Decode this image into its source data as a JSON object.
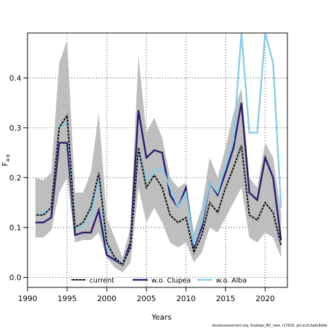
{
  "chart_data": {
    "type": "line",
    "xlabel": "Years",
    "ylabel": "F",
    "ylabel_sub": "4-6",
    "xlim": [
      1990,
      2022.8
    ],
    "ylim": [
      -0.02,
      0.49
    ],
    "xticks": [
      1990,
      1995,
      2000,
      2005,
      2010,
      2015,
      2020
    ],
    "yticks": [
      0.0,
      0.1,
      0.2,
      0.3,
      0.4
    ],
    "ytick_labels": [
      "0.0",
      "0.1",
      "0.2",
      "0.3",
      "0.4"
    ],
    "grid": true,
    "legend_position": "bottom",
    "x": [
      1991,
      1992,
      1993,
      1994,
      1995,
      1996,
      1997,
      1998,
      1999,
      2000,
      2001,
      2002,
      2003,
      2004,
      2005,
      2006,
      2007,
      2008,
      2009,
      2010,
      2011,
      2012,
      2013,
      2014,
      2015,
      2016,
      2017,
      2018,
      2019,
      2020,
      2021,
      2022
    ],
    "band": {
      "color": "#bebebe",
      "lower": [
        0.08,
        0.08,
        0.095,
        0.17,
        0.2,
        0.07,
        0.075,
        0.075,
        0.09,
        0.04,
        0.02,
        0.01,
        0.03,
        0.18,
        0.11,
        0.14,
        0.11,
        0.07,
        0.06,
        0.07,
        0.03,
        0.05,
        0.1,
        0.09,
        0.12,
        0.15,
        0.18,
        0.08,
        0.07,
        0.09,
        0.08,
        0.04
      ],
      "upper": [
        0.2,
        0.195,
        0.21,
        0.43,
        0.475,
        0.17,
        0.17,
        0.21,
        0.33,
        0.12,
        0.08,
        0.04,
        0.1,
        0.445,
        0.29,
        0.32,
        0.28,
        0.2,
        0.18,
        0.19,
        0.09,
        0.14,
        0.24,
        0.2,
        0.26,
        0.33,
        0.38,
        0.2,
        0.18,
        0.27,
        0.24,
        0.13
      ]
    },
    "series": [
      {
        "name": "current",
        "color": "#000000",
        "dashed": true,
        "values": [
          0.125,
          0.125,
          0.14,
          0.3,
          0.325,
          0.1,
          0.11,
          0.14,
          0.21,
          0.07,
          0.04,
          0.025,
          0.06,
          0.26,
          0.18,
          0.205,
          0.18,
          0.125,
          0.11,
          0.12,
          0.05,
          0.085,
          0.15,
          0.13,
          0.18,
          0.22,
          0.265,
          0.125,
          0.115,
          0.15,
          0.13,
          0.065
        ]
      },
      {
        "name": "w.o. Clupea",
        "color": "#2c1a6e",
        "dashed": false,
        "values": [
          0.11,
          0.11,
          0.12,
          0.27,
          0.27,
          0.085,
          0.09,
          0.09,
          0.135,
          0.045,
          0.035,
          0.025,
          0.07,
          0.335,
          0.24,
          0.255,
          0.25,
          0.165,
          0.14,
          0.18,
          0.06,
          0.1,
          0.19,
          0.165,
          0.21,
          0.26,
          0.35,
          0.17,
          0.155,
          0.24,
          0.2,
          0.075
        ]
      },
      {
        "name": "w.o. Alba",
        "color": "#87ceeb",
        "dashed": false,
        "values": [
          0.125,
          0.13,
          0.14,
          0.3,
          0.31,
          0.1,
          0.1,
          0.12,
          0.2,
          0.06,
          0.04,
          0.025,
          0.06,
          0.26,
          0.195,
          0.215,
          0.22,
          0.18,
          0.14,
          0.17,
          0.065,
          0.11,
          0.19,
          0.17,
          0.225,
          0.275,
          0.49,
          0.29,
          0.29,
          0.49,
          0.43,
          0.14
        ]
      }
    ]
  },
  "footer_text": "stockassessment.org, Scallops_BC_new, r17520, git:ec2c2a0c8dde"
}
